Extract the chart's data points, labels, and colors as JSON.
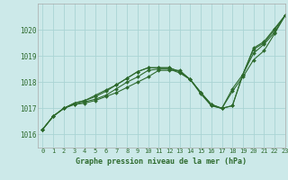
{
  "title": "Graphe pression niveau de la mer (hPa)",
  "xlabel_hours": [
    0,
    1,
    2,
    3,
    4,
    5,
    6,
    7,
    8,
    9,
    10,
    11,
    12,
    13,
    14,
    15,
    16,
    17,
    18,
    19,
    20,
    21,
    22,
    23
  ],
  "xlim": [
    -0.5,
    23
  ],
  "ylim": [
    1015.5,
    1021.0
  ],
  "yticks": [
    1016,
    1017,
    1018,
    1019,
    1020
  ],
  "background_color": "#cce9e9",
  "grid_color": "#aad4d4",
  "line_color": "#2d6a2d",
  "series": {
    "line1": [
      1016.2,
      1016.7,
      1017.0,
      1017.15,
      1017.2,
      1017.3,
      1017.45,
      1017.6,
      1017.8,
      1018.0,
      1018.2,
      1018.45,
      1018.45,
      1018.45,
      1018.1,
      1017.55,
      1017.1,
      1017.0,
      1017.65,
      1018.2,
      1018.85,
      1019.2,
      1019.85,
      1020.55
    ],
    "line2": [
      1016.2,
      1016.7,
      1017.0,
      1017.15,
      1017.25,
      1017.35,
      1017.5,
      1017.75,
      1018.0,
      1018.2,
      1018.45,
      1018.5,
      1018.5,
      1018.35,
      1018.1,
      1017.6,
      1017.1,
      1017.0,
      1017.75,
      1018.3,
      1019.1,
      1019.45,
      1019.9,
      1020.55
    ],
    "line3": [
      1016.2,
      1016.7,
      1017.0,
      1017.2,
      1017.3,
      1017.45,
      1017.65,
      1017.9,
      1018.15,
      1018.4,
      1018.55,
      1018.55,
      1018.55,
      1018.4,
      1018.1,
      1017.6,
      1017.15,
      1017.0,
      1017.1,
      1018.3,
      1019.25,
      1019.5,
      1020.0,
      1020.55
    ],
    "line4": [
      1016.2,
      1016.7,
      1017.0,
      1017.2,
      1017.3,
      1017.5,
      1017.7,
      1017.9,
      1018.15,
      1018.4,
      1018.55,
      1018.55,
      1018.55,
      1018.4,
      1018.1,
      1017.6,
      1017.15,
      1017.0,
      1017.1,
      1018.3,
      1019.3,
      1019.55,
      1020.05,
      1020.55
    ]
  }
}
